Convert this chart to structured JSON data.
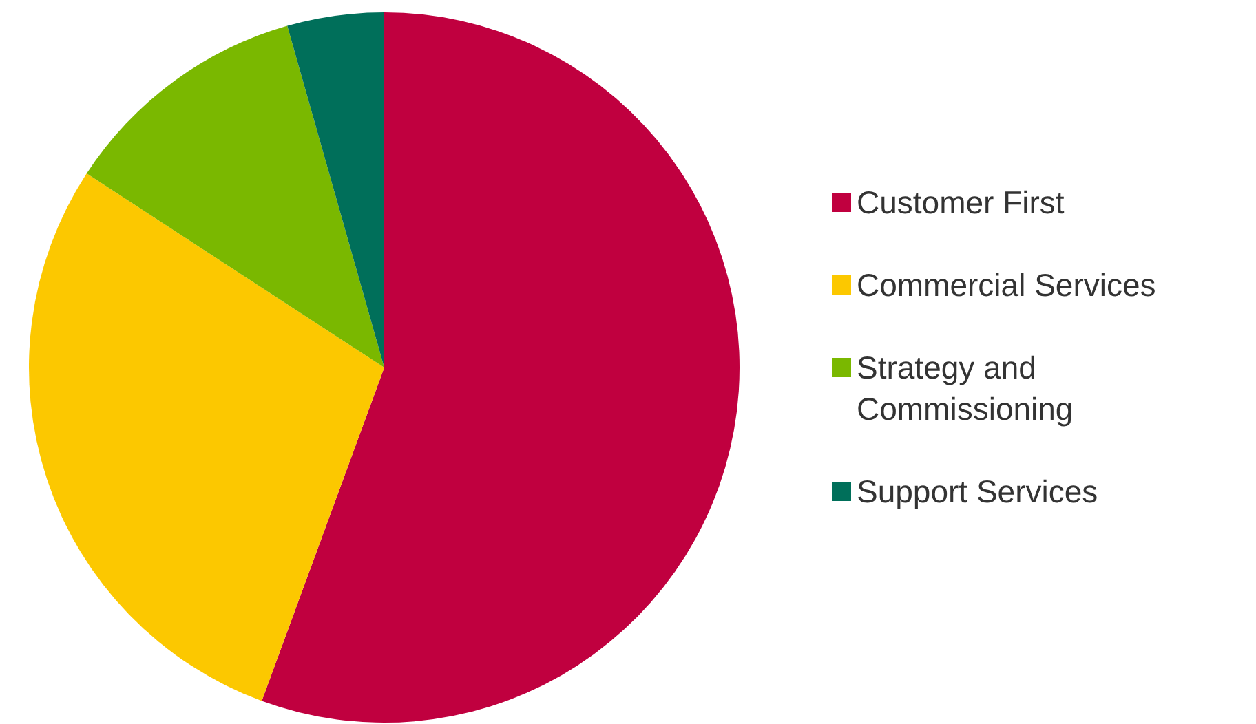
{
  "chart_data": {
    "type": "pie",
    "categories": [
      "Customer First",
      "Commercial Services",
      "Strategy and Commissioning",
      "Support Services"
    ],
    "values": [
      55.6,
      28.6,
      11.4,
      4.4
    ],
    "colors": [
      "#c0003f",
      "#fcc800",
      "#7ab800",
      "#006f5a"
    ],
    "legend": "right"
  }
}
